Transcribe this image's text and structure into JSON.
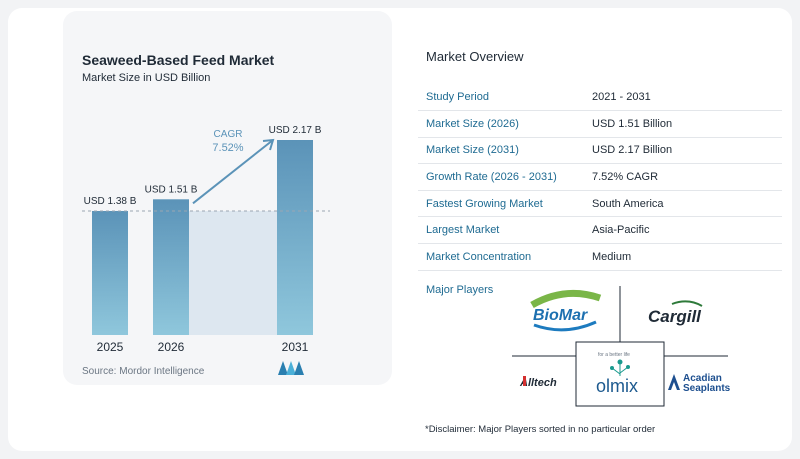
{
  "chart_data": {
    "type": "bar",
    "title": "Seaweed-Based Feed Market",
    "subtitle": "Market Size in USD Billion",
    "categories": [
      "2025",
      "2026",
      "2031"
    ],
    "values": [
      1.38,
      1.51,
      2.17
    ],
    "data_labels": [
      "USD 1.38 B",
      "USD 1.51 B",
      "USD 2.17 B"
    ],
    "cagr_label": "CAGR",
    "cagr_value": "7.52%",
    "bar_color": "#5b93b8",
    "bar_color_light": "#8fc7dc"
  },
  "source": "Source: Mordor Intelligence",
  "overview": {
    "title": "Market Overview",
    "rows": [
      {
        "key": "Study Period",
        "value": "2021 - 2031"
      },
      {
        "key": "Market Size (2026)",
        "value": "USD 1.51 Billion"
      },
      {
        "key": "Market Size (2031)",
        "value": "USD 2.17 Billion"
      },
      {
        "key": "Growth Rate (2026 - 2031)",
        "value": "7.52% CAGR"
      },
      {
        "key": "Fastest Growing Market",
        "value": "South America"
      },
      {
        "key": "Largest Market",
        "value": "Asia-Pacific"
      },
      {
        "key": "Market Concentration",
        "value": "Medium"
      }
    ]
  },
  "players": {
    "title": "Major Players",
    "logos": {
      "biomar": "BioMar",
      "cargill": "Cargill",
      "alltech": "Alltech",
      "olmix_tag": "for a better life",
      "olmix": "olmix",
      "acadian_1": "Acadian",
      "acadian_2": "Seaplants"
    }
  },
  "disclaimer": "*Disclaimer: Major Players sorted in no particular order"
}
